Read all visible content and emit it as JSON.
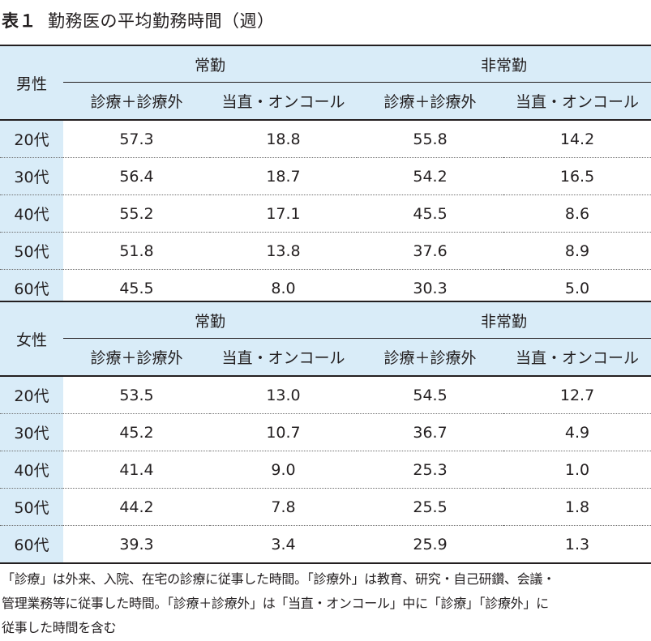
{
  "title": {
    "label": "表１",
    "text": "勤務医の平均勤務時間（週）"
  },
  "headers": {
    "group1": "常勤",
    "group2": "非常勤",
    "col_a": "診療＋診療外",
    "col_b": "当直・オンコール"
  },
  "tables": [
    {
      "gender": "男性",
      "rows": [
        {
          "age": "20代",
          "values": [
            "57.3",
            "18.8",
            "55.8",
            "14.2"
          ]
        },
        {
          "age": "30代",
          "values": [
            "56.4",
            "18.7",
            "54.2",
            "16.5"
          ]
        },
        {
          "age": "40代",
          "values": [
            "55.2",
            "17.1",
            "45.5",
            "8.6"
          ]
        },
        {
          "age": "50代",
          "values": [
            "51.8",
            "13.8",
            "37.6",
            "8.9"
          ]
        },
        {
          "age": "60代",
          "values": [
            "45.5",
            "8.0",
            "30.3",
            "5.0"
          ]
        }
      ]
    },
    {
      "gender": "女性",
      "rows": [
        {
          "age": "20代",
          "values": [
            "53.5",
            "13.0",
            "54.5",
            "12.7"
          ]
        },
        {
          "age": "30代",
          "values": [
            "45.2",
            "10.7",
            "36.7",
            "4.9"
          ]
        },
        {
          "age": "40代",
          "values": [
            "41.4",
            "9.0",
            "25.3",
            "1.0"
          ]
        },
        {
          "age": "50代",
          "values": [
            "44.2",
            "7.8",
            "25.5",
            "1.8"
          ]
        },
        {
          "age": "60代",
          "values": [
            "39.3",
            "3.4",
            "25.9",
            "1.3"
          ]
        }
      ]
    }
  ],
  "note": [
    "「診療」は外来、入院、在宅の診療に従事した時間。「診療外」は教育、研究・自己研鑽、会議・",
    "管理業務等に従事した時間。「診療＋診療外」は「当直・オンコール」中に「診療」「診療外」に",
    "従事した時間を含む"
  ]
}
